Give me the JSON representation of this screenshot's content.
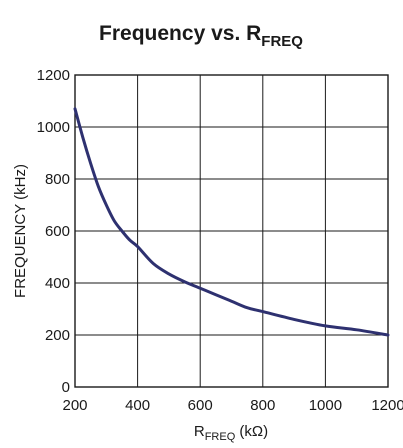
{
  "chart_data": {
    "type": "line",
    "title": {
      "main": "Frequency vs. R",
      "subscript": "FREQ"
    },
    "xlabel": {
      "main": "R",
      "subscript": "FREQ",
      "suffix": " (kΩ)"
    },
    "ylabel": "FREQUENCY (kHz)",
    "xlim": [
      200,
      1200
    ],
    "ylim": [
      0,
      1200
    ],
    "x_ticks": [
      200,
      400,
      600,
      800,
      1000,
      1200
    ],
    "y_ticks": [
      0,
      200,
      400,
      600,
      800,
      1000,
      1200
    ],
    "x_tick_labels": [
      "200",
      "400",
      "600",
      "800",
      "1000",
      "1200"
    ],
    "y_tick_labels": [
      "0",
      "200",
      "400",
      "600",
      "800",
      "1000",
      "1200"
    ],
    "grid": true,
    "line_color": "#2e3170",
    "series": [
      {
        "x": [
          200,
          225,
          250,
          275,
          300,
          325,
          350,
          375,
          400,
          450,
          500,
          550,
          600,
          650,
          700,
          750,
          800,
          900,
          1000,
          1100,
          1200
        ],
        "values": [
          1070,
          960,
          860,
          770,
          700,
          640,
          600,
          565,
          540,
          475,
          435,
          405,
          380,
          355,
          330,
          305,
          290,
          260,
          235,
          220,
          200
        ]
      }
    ]
  }
}
